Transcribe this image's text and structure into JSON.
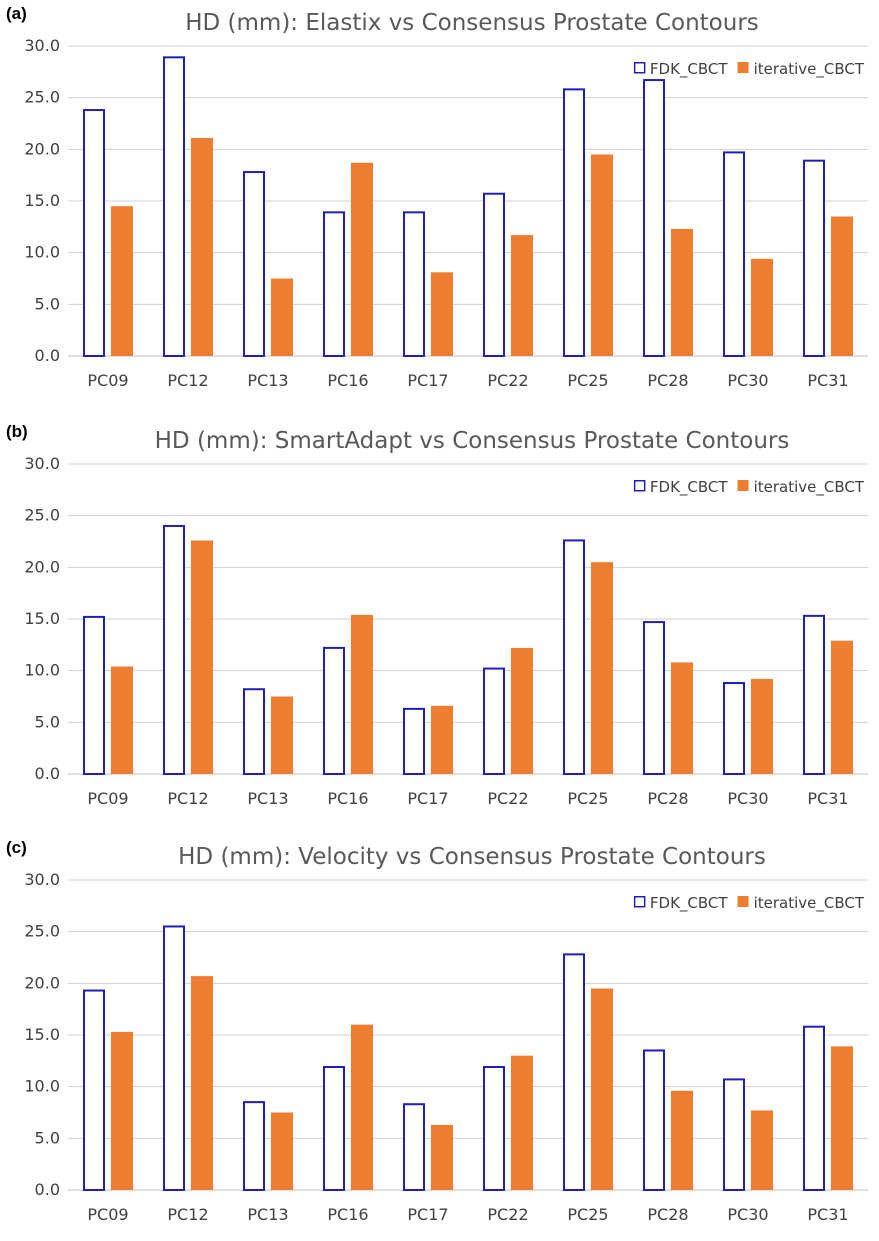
{
  "colors": {
    "fdk": "#1f1fb4",
    "iterative": "#ed7d31",
    "grid": "#d0d0d0",
    "axis": "#bfbfbf",
    "text": "#404040",
    "title": "#595959"
  },
  "chart_data": [
    {
      "panel_label": "(a)",
      "type": "bar",
      "title": "HD (mm): Elastix vs Consensus Prostate Contours",
      "xlabel": "",
      "ylabel": "",
      "ylim": [
        0,
        30
      ],
      "yticks": [
        "0.0",
        "5.0",
        "10.0",
        "15.0",
        "20.0",
        "25.0",
        "30.0"
      ],
      "grid": true,
      "legend_position": "top-right",
      "categories": [
        "PC09",
        "PC12",
        "PC13",
        "PC16",
        "PC17",
        "PC22",
        "PC25",
        "PC28",
        "PC30",
        "PC31"
      ],
      "series": [
        {
          "name": "FDK_CBCT",
          "style": "outline",
          "values": [
            23.9,
            29.0,
            17.9,
            14.0,
            14.0,
            15.8,
            25.9,
            26.8,
            19.8,
            19.0
          ]
        },
        {
          "name": "iterative_CBCT",
          "style": "filled",
          "values": [
            14.5,
            21.1,
            7.5,
            18.7,
            8.1,
            11.7,
            19.5,
            12.3,
            9.4,
            13.5
          ]
        }
      ]
    },
    {
      "panel_label": "(b)",
      "type": "bar",
      "title": "HD (mm): SmartAdapt vs Consensus Prostate Contours",
      "xlabel": "",
      "ylabel": "",
      "ylim": [
        0,
        30
      ],
      "yticks": [
        "0.0",
        "5.0",
        "10.0",
        "15.0",
        "20.0",
        "25.0",
        "30.0"
      ],
      "grid": true,
      "legend_position": "top-right",
      "categories": [
        "PC09",
        "PC12",
        "PC13",
        "PC16",
        "PC17",
        "PC22",
        "PC25",
        "PC28",
        "PC30",
        "PC31"
      ],
      "series": [
        {
          "name": "FDK_CBCT",
          "style": "outline",
          "values": [
            15.3,
            24.1,
            8.3,
            12.3,
            6.4,
            10.3,
            22.7,
            14.8,
            8.9,
            15.4
          ]
        },
        {
          "name": "iterative_CBCT",
          "style": "filled",
          "values": [
            10.4,
            22.6,
            7.5,
            15.4,
            6.6,
            12.2,
            20.5,
            10.8,
            9.2,
            12.9
          ]
        }
      ]
    },
    {
      "panel_label": "(c)",
      "type": "bar",
      "title": "HD (mm): Velocity vs Consensus Prostate Contours",
      "xlabel": "",
      "ylabel": "",
      "ylim": [
        0,
        30
      ],
      "yticks": [
        "0.0",
        "5.0",
        "10.0",
        "15.0",
        "20.0",
        "25.0",
        "30.0"
      ],
      "grid": true,
      "legend_position": "top-right",
      "categories": [
        "PC09",
        "PC12",
        "PC13",
        "PC16",
        "PC17",
        "PC22",
        "PC25",
        "PC28",
        "PC30",
        "PC31"
      ],
      "series": [
        {
          "name": "FDK_CBCT",
          "style": "outline",
          "values": [
            19.4,
            25.6,
            8.6,
            12.0,
            8.4,
            12.0,
            22.9,
            13.6,
            10.8,
            15.9
          ]
        },
        {
          "name": "iterative_CBCT",
          "style": "filled",
          "values": [
            15.3,
            20.7,
            7.5,
            16.0,
            6.3,
            13.0,
            19.5,
            9.6,
            7.7,
            13.9
          ]
        }
      ]
    }
  ]
}
